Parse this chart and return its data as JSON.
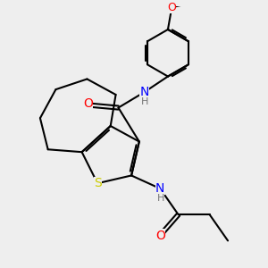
{
  "background_color": "#eeeeee",
  "atom_colors": {
    "O": "#ff0000",
    "N": "#0000ff",
    "S": "#cccc00",
    "C": "#000000",
    "H": "#777777"
  },
  "bond_color": "#000000",
  "bond_width": 1.5,
  "figsize": [
    3.0,
    3.0
  ],
  "dpi": 100
}
